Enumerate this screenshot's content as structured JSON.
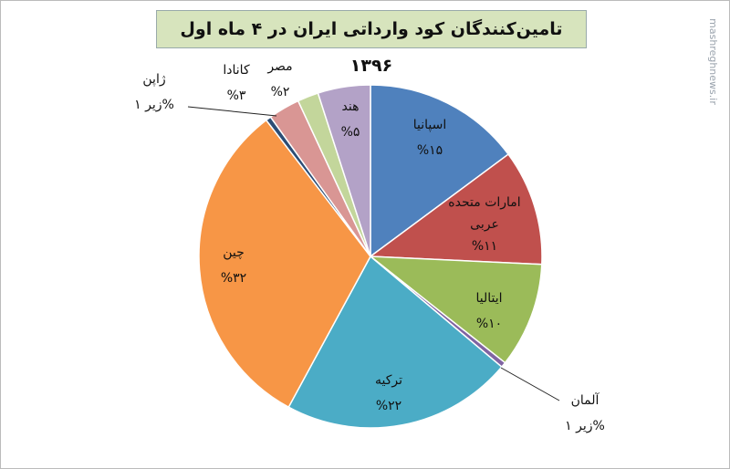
{
  "chart_data": {
    "type": "pie",
    "title": "تامین‌کنندگان کود وارداتی ایران در ۴ ماه اول ۱۳۹۶",
    "categories": [
      "اسپانیا",
      "امارات متحده عربی",
      "ایتالیا",
      "آلمان",
      "ترکیه",
      "چین",
      "ژاپن",
      "کانادا",
      "مصر",
      "هند"
    ],
    "values": [
      15,
      11,
      10,
      0.5,
      22,
      32,
      0.5,
      3,
      2,
      5
    ],
    "value_labels": [
      "%۱۵",
      "%۱۱",
      "%۱۰",
      "زیر ۱%",
      "%۲۲",
      "%۳۲",
      "زیر ۱%",
      "%۳",
      "%۲",
      "%۵"
    ],
    "colors": [
      "#4f81bd",
      "#c0504d",
      "#9bbb59",
      "#8064a2",
      "#4bacc6",
      "#f79646",
      "#2c4d75",
      "#d99694",
      "#c3d69b",
      "#b3a2c7"
    ],
    "watermark": "mashreghnews.ir"
  }
}
